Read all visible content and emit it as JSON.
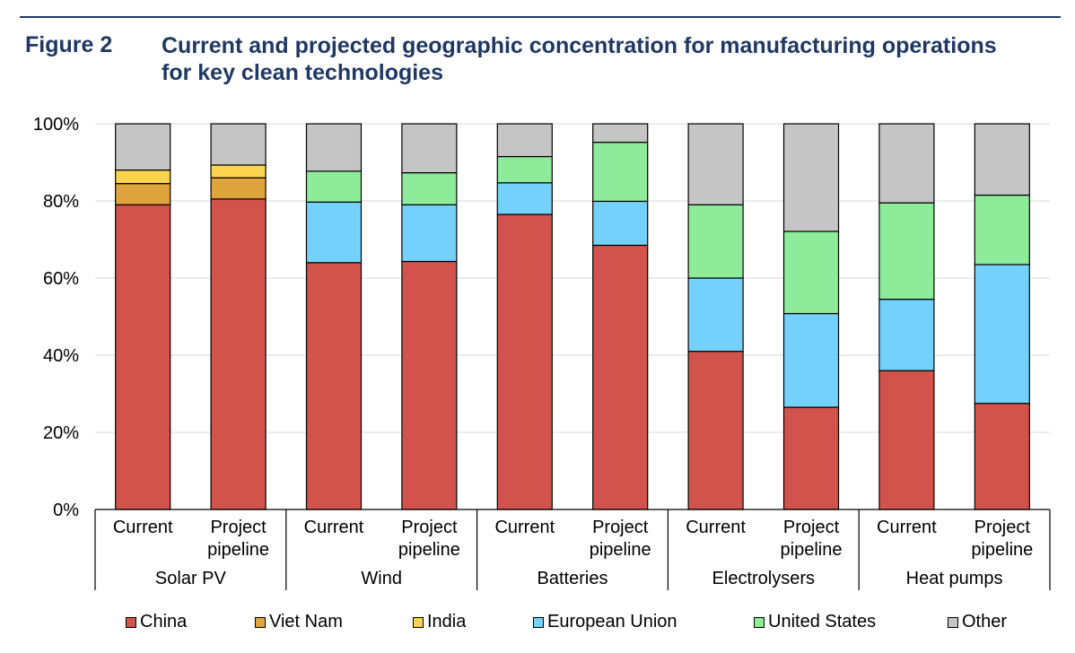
{
  "figure": {
    "label": "Figure 2",
    "title": "Current and projected geographic concentration for manufacturing operations for key clean technologies"
  },
  "colors": {
    "China": "#d2534c",
    "Viet Nam": "#e0a43d",
    "India": "#fcd34d",
    "European Union": "#74d1fb",
    "United States": "#8eeb9a",
    "Other": "#c5c5c5"
  },
  "chart_data": {
    "type": "bar",
    "stacked": true,
    "ylim": [
      0,
      100
    ],
    "yticks": [
      "0%",
      "20%",
      "40%",
      "60%",
      "80%",
      "100%"
    ],
    "groups": [
      "Solar PV",
      "Wind",
      "Batteries",
      "Electrolysers",
      "Heat pumps"
    ],
    "categories": [
      {
        "group": "Solar PV",
        "label": [
          "Current"
        ]
      },
      {
        "group": "Solar PV",
        "label": [
          "Project",
          "pipeline"
        ]
      },
      {
        "group": "Wind",
        "label": [
          "Current"
        ]
      },
      {
        "group": "Wind",
        "label": [
          "Project",
          "pipeline"
        ]
      },
      {
        "group": "Batteries",
        "label": [
          "Current"
        ]
      },
      {
        "group": "Batteries",
        "label": [
          "Project",
          "pipeline"
        ]
      },
      {
        "group": "Electrolysers",
        "label": [
          "Current"
        ]
      },
      {
        "group": "Electrolysers",
        "label": [
          "Project",
          "pipeline"
        ]
      },
      {
        "group": "Heat pumps",
        "label": [
          "Current"
        ]
      },
      {
        "group": "Heat pumps",
        "label": [
          "Project",
          "pipeline"
        ]
      }
    ],
    "series": [
      {
        "name": "China",
        "values": [
          79,
          80.5,
          64,
          64.3,
          76.5,
          68.5,
          41,
          26.5,
          36,
          27.5
        ]
      },
      {
        "name": "Viet Nam",
        "values": [
          5.5,
          5.5,
          0,
          0,
          0,
          0,
          0,
          0,
          0,
          0
        ]
      },
      {
        "name": "India",
        "values": [
          3.5,
          3.3,
          0,
          0,
          0,
          0,
          0,
          0,
          0,
          0
        ]
      },
      {
        "name": "European Union",
        "values": [
          0,
          0,
          15.7,
          14.7,
          8.2,
          11.4,
          19,
          24.3,
          18.5,
          36
        ]
      },
      {
        "name": "United States",
        "values": [
          0,
          0,
          8,
          8.3,
          6.8,
          15.3,
          19,
          21.3,
          25,
          18
        ]
      },
      {
        "name": "Other",
        "values": [
          12,
          10.7,
          12.3,
          12.7,
          8.5,
          4.8,
          21,
          27.9,
          20.5,
          18.5
        ]
      }
    ],
    "legend": [
      "China",
      "Viet Nam",
      "India",
      "European Union",
      "United States",
      "Other"
    ],
    "legend_position": "bottom",
    "grid": true
  }
}
